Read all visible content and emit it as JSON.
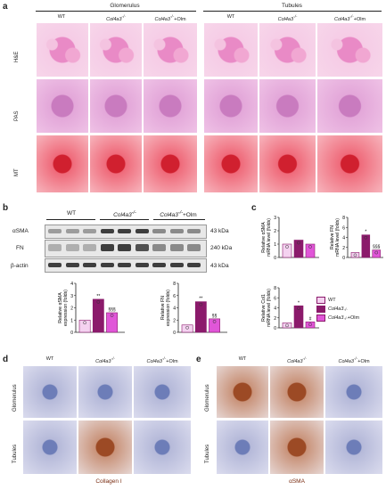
{
  "panel_a": {
    "letter": "a",
    "glomerulus_title": "Glomerulus",
    "tubules_title": "Tubules",
    "columns": [
      "WT",
      "Col4a3",
      "Col4a3",
      "+Olm",
      "WT",
      "Col4a3",
      "Col4a3",
      "+Olm"
    ],
    "col_sup": "-/-",
    "rows": [
      "H&E",
      "PAS",
      "MT"
    ]
  },
  "panel_b": {
    "letter": "b",
    "groups": [
      "WT",
      "Col4a3",
      "Col4a3",
      "+Olm"
    ],
    "sup": "-/-",
    "proteins": [
      "αSMA",
      "FN",
      "β-actin"
    ],
    "sizes": [
      "43 kDa",
      "240 kDa",
      "43 kDa"
    ],
    "bar_chart_1": {
      "ylabel_line1": "Relative αSMA",
      "ylabel_line2": "expression (folds)",
      "yticks": [
        "0",
        "1",
        "2",
        "3",
        "4"
      ],
      "marks": [
        "**",
        "§§§"
      ]
    },
    "bar_chart_2": {
      "ylabel_line1": "Relative FN",
      "ylabel_line2": "expression (folds)",
      "yticks": [
        "0",
        "2",
        "4",
        "6",
        "8"
      ],
      "marks": [
        "**",
        "§§"
      ]
    }
  },
  "panel_c": {
    "letter": "c",
    "chart_1": {
      "ylabel_line1": "Relative αSMA",
      "ylabel_line2": "mRNA level (folds)",
      "yticks": [
        "0",
        "1",
        "2",
        "3"
      ]
    },
    "chart_2": {
      "ylabel_line1": "Relative FN",
      "ylabel_line2": "mRNA level (folds)",
      "yticks": [
        "0",
        "2",
        "4",
        "6",
        "8"
      ],
      "marks": [
        "*",
        "§§§"
      ]
    },
    "chart_3": {
      "ylabel_line1": "Relative Col1",
      "ylabel_line2": "mRNA level (folds)",
      "yticks": [
        "0",
        "2",
        "4",
        "6",
        "8"
      ],
      "marks": [
        "*",
        "#"
      ]
    },
    "legend": [
      {
        "label": "WT",
        "color": "#f4d2f0"
      },
      {
        "label": "Col4a3",
        "sup": "-/-",
        "color": "#8b1a6b"
      },
      {
        "label": "Col4a3",
        "sup": "-/-",
        "suffix": "+Olm",
        "color": "#e056d8"
      }
    ]
  },
  "panel_d": {
    "letter": "d",
    "columns": [
      "WT",
      "Col4a3",
      "Col4a3",
      "+Olm"
    ],
    "sup": "-/-",
    "rows": [
      "Glomerulus",
      "Tubules"
    ],
    "caption": "Collagen I"
  },
  "panel_e": {
    "letter": "e",
    "columns": [
      "WT",
      "Col4a3",
      "Col4a3",
      "+Olm"
    ],
    "sup": "-/-",
    "rows": [
      "Glomerulus",
      "Tubules"
    ],
    "caption": "αSMA"
  },
  "chart_data": [
    {
      "type": "bar",
      "title": "",
      "categories": [
        "WT",
        "Col4a3-/-",
        "Col4a3-/-+Olm"
      ],
      "values": [
        1.0,
        2.7,
        1.6
      ],
      "ylabel": "Relative αSMA expression (folds)",
      "ylim": [
        0,
        4
      ]
    },
    {
      "type": "bar",
      "title": "",
      "categories": [
        "WT",
        "Col4a3-/-",
        "Col4a3-/-+Olm"
      ],
      "values": [
        1.2,
        5.0,
        2.2
      ],
      "ylabel": "Relative FN expression (folds)",
      "ylim": [
        0,
        8
      ]
    },
    {
      "type": "bar",
      "title": "",
      "categories": [
        "WT",
        "Col4a3-/-",
        "Col4a3-/-+Olm"
      ],
      "values": [
        1.0,
        1.3,
        1.0
      ],
      "ylabel": "Relative αSMA mRNA level (folds)",
      "ylim": [
        0,
        3
      ]
    },
    {
      "type": "bar",
      "title": "",
      "categories": [
        "WT",
        "Col4a3-/-",
        "Col4a3-/-+Olm"
      ],
      "values": [
        1.0,
        4.5,
        1.5
      ],
      "ylabel": "Relative FN mRNA level (folds)",
      "ylim": [
        0,
        8
      ]
    },
    {
      "type": "bar",
      "title": "",
      "categories": [
        "WT",
        "Col4a3-/-",
        "Col4a3-/-+Olm"
      ],
      "values": [
        1.0,
        4.4,
        1.2
      ],
      "ylabel": "Relative Col1 mRNA level (folds)",
      "ylim": [
        0,
        8
      ]
    }
  ]
}
